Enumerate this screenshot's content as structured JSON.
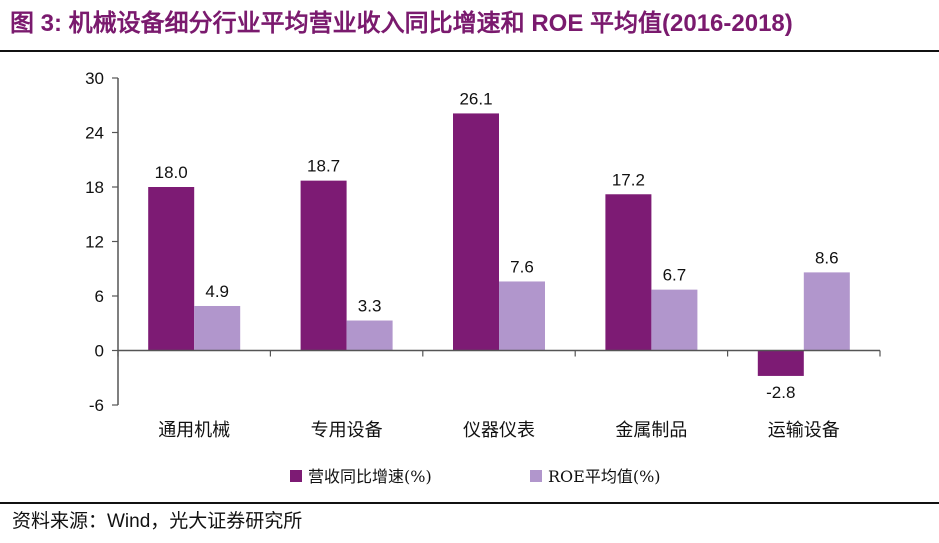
{
  "title": "图 3: 机械设备细分行业平均营业收入同比增速和 ROE 平均值(2016-2018)",
  "source": "资料来源：Wind，光大证券研究所",
  "colors": {
    "title": "#7A1A6E",
    "series_primary": "#7D1B74",
    "series_secondary": "#B196CC"
  },
  "chart_data": {
    "type": "bar",
    "title": "图 3: 机械设备细分行业平均营业收入同比增速和 ROE 平均值(2016-2018)",
    "xlabel": "",
    "ylabel": "",
    "categories": [
      "通用机械",
      "专用设备",
      "仪器仪表",
      "金属制品",
      "运输设备"
    ],
    "series": [
      {
        "name": "营收同比增速(%)",
        "values": [
          18.0,
          18.7,
          26.1,
          17.2,
          -2.8
        ]
      },
      {
        "name": "ROE平均值(%)",
        "values": [
          4.9,
          3.3,
          7.6,
          6.7,
          8.6
        ]
      }
    ],
    "ylim": [
      -6,
      30
    ],
    "yticks": [
      "-6",
      "0",
      "6",
      "12",
      "18",
      "24",
      "30"
    ],
    "grid": false,
    "legend_position": "bottom"
  }
}
